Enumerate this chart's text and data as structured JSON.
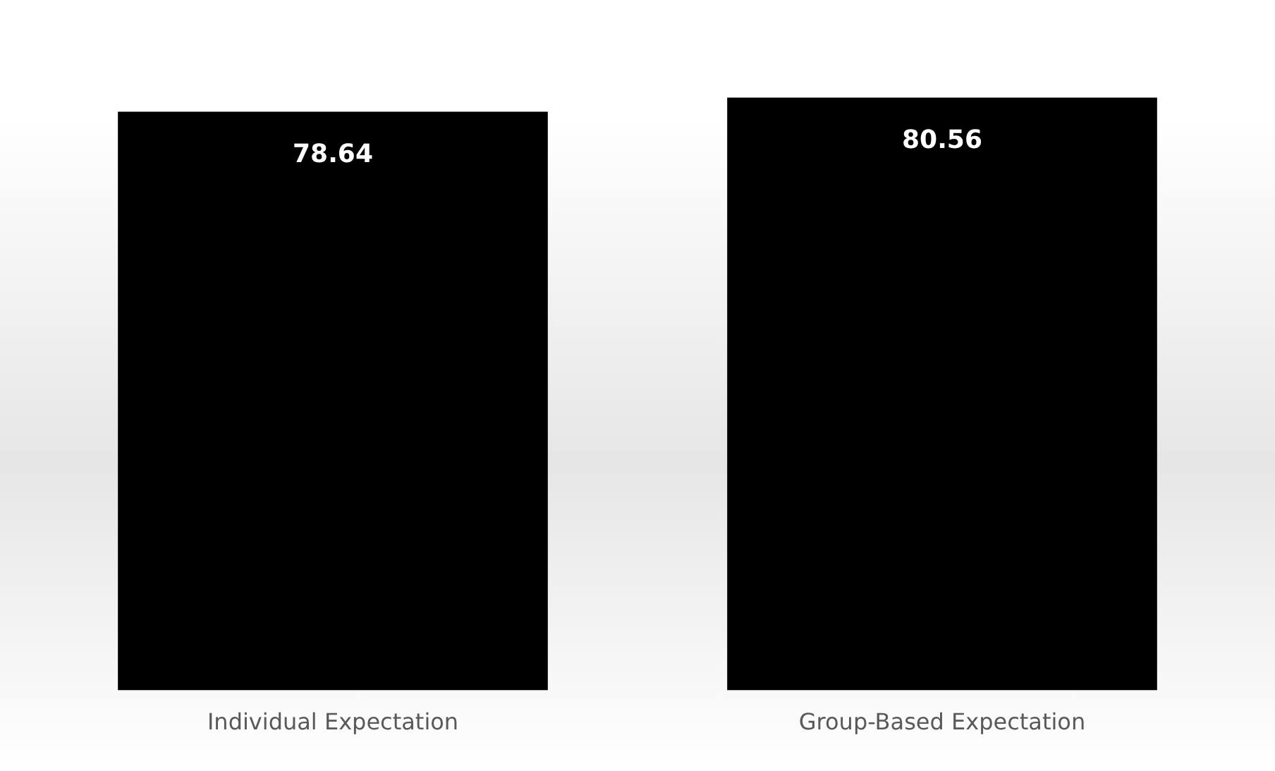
{
  "chart_data": {
    "type": "bar",
    "categories": [
      "Individual Expectation",
      "Group-Based Expectation"
    ],
    "values": [
      78.64,
      80.56
    ],
    "color": "#000000",
    "data_labels": true,
    "grid": false,
    "legend": false
  }
}
